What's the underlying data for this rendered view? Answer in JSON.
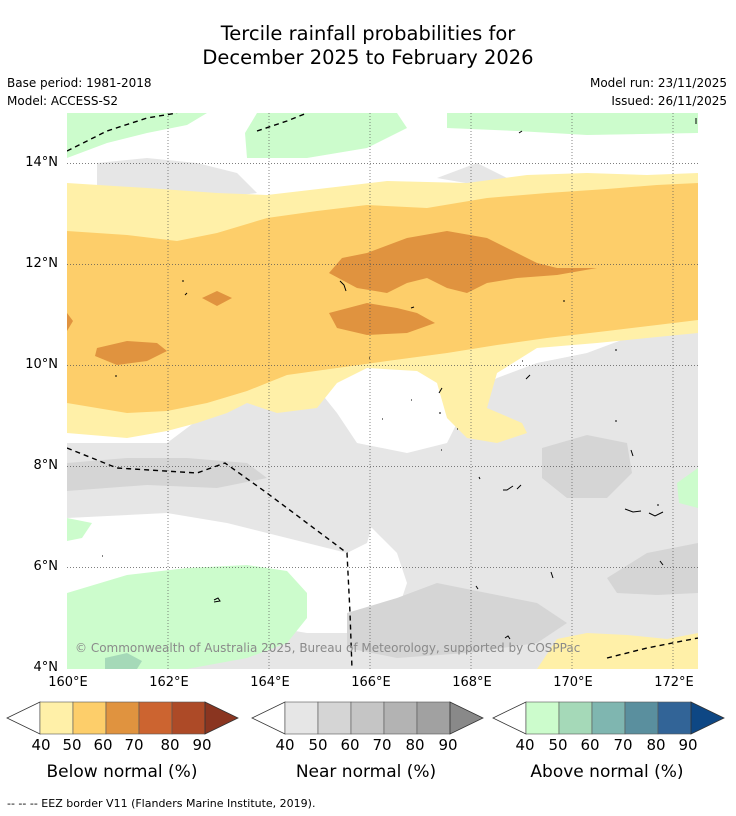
{
  "title_line1": "Tercile rainfall probabilities for",
  "title_line2": "December 2025 to February 2026",
  "base_period": "Base period: 1981-2018",
  "model": "Model: ACCESS-S2",
  "model_run": "Model run: 23/11/2025",
  "issued": "Issued: 26/11/2025",
  "copyright": "© Commonwealth of Australia 2025, Bureau of Meteorology, supported by COSPPac",
  "footer": "--  --  -- EEZ border V11 (Flanders Marine Institute, 2019).",
  "lat_labels": [
    "14°N",
    "12°N",
    "10°N",
    "8°N",
    "6°N",
    "4°N"
  ],
  "lon_labels": [
    "160°E",
    "162°E",
    "164°E",
    "166°E",
    "168°E",
    "170°E",
    "172°E"
  ],
  "colorbars": [
    {
      "name": "below",
      "title": "Below normal (%)",
      "ticks": [
        "40",
        "50",
        "60",
        "70",
        "80",
        "90"
      ],
      "colors": [
        "#fff0a8",
        "#fdce6a",
        "#e0933f",
        "#cc6430",
        "#ad4a27",
        "#8a3520"
      ]
    },
    {
      "name": "near",
      "title": "Near normal (%)",
      "ticks": [
        "40",
        "50",
        "60",
        "70",
        "80",
        "90"
      ],
      "colors": [
        "#e6e6e6",
        "#d5d5d5",
        "#c5c5c5",
        "#b3b3b3",
        "#a1a1a1",
        "#898989"
      ]
    },
    {
      "name": "above",
      "title": "Above normal (%)",
      "ticks": [
        "40",
        "50",
        "60",
        "70",
        "80",
        "90"
      ],
      "colors": [
        "#ccfccc",
        "#a5d9b8",
        "#7fb6b0",
        "#5a8f9e",
        "#326497",
        "#0e4784"
      ]
    }
  ]
}
